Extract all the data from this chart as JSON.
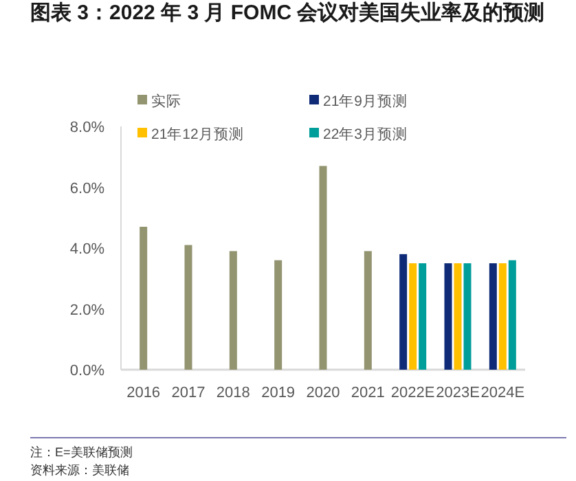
{
  "chart_data": {
    "type": "bar",
    "title": "图表 3：2022 年 3 月 FOMC 会议对美国失业率及的预测",
    "categories": [
      "2016",
      "2017",
      "2018",
      "2019",
      "2020",
      "2021",
      "2022E",
      "2023E",
      "2024E"
    ],
    "series": [
      {
        "name": "实际",
        "color": "#939470",
        "values": [
          4.7,
          4.1,
          3.9,
          3.6,
          6.7,
          3.9,
          null,
          null,
          null
        ]
      },
      {
        "name": "21年9月预测",
        "color": "#0f2b78",
        "values": [
          null,
          null,
          null,
          null,
          null,
          null,
          3.8,
          3.5,
          3.5
        ]
      },
      {
        "name": "21年12月预测",
        "color": "#ffc000",
        "values": [
          null,
          null,
          null,
          null,
          null,
          null,
          3.5,
          3.5,
          3.5
        ]
      },
      {
        "name": "22年3月预测",
        "color": "#009e9a",
        "values": [
          null,
          null,
          null,
          null,
          null,
          null,
          3.5,
          3.5,
          3.6
        ]
      }
    ],
    "ylim": [
      0,
      8
    ],
    "yticks": [
      {
        "value": 0,
        "label": "0.0%"
      },
      {
        "value": 2,
        "label": "2.0%"
      },
      {
        "value": 4,
        "label": "4.0%"
      },
      {
        "value": 6,
        "label": "6.0%"
      },
      {
        "value": 8,
        "label": "8.0%"
      }
    ],
    "grid": false,
    "legend": "top",
    "annotations": [
      "注：E=美联储预测",
      "资料来源：美联储"
    ]
  }
}
